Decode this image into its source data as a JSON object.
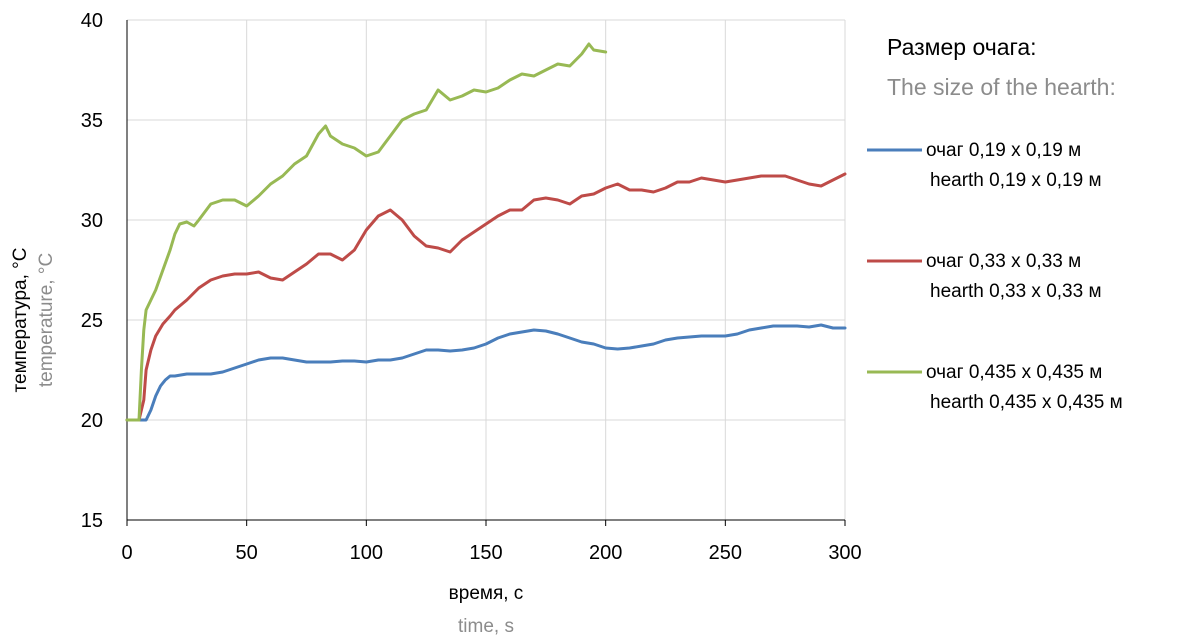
{
  "chart_data": {
    "type": "line",
    "xlabel": "время, с",
    "xlabel_en": "time, s",
    "ylabel": "температура, °C",
    "ylabel_en": "temperature, °C",
    "xlim": [
      0,
      300
    ],
    "ylim": [
      15,
      40
    ],
    "x_ticks": [
      0,
      50,
      100,
      150,
      200,
      250,
      300
    ],
    "y_ticks": [
      15,
      20,
      25,
      30,
      35,
      40
    ],
    "grid": true,
    "legend": {
      "placement": "right",
      "title": "Размер очага:",
      "subtitle": "The size of the hearth:"
    },
    "series": [
      {
        "name": "очаг 0,19 х 0,19 м",
        "name_en": "hearth 0,19 х 0,19 м",
        "color": "#4a7ebb",
        "x": [
          0,
          5,
          8,
          10,
          12,
          14,
          16,
          18,
          20,
          25,
          30,
          35,
          40,
          45,
          50,
          55,
          60,
          65,
          70,
          75,
          80,
          85,
          90,
          95,
          100,
          105,
          110,
          115,
          120,
          125,
          130,
          135,
          140,
          145,
          150,
          155,
          160,
          165,
          170,
          175,
          180,
          185,
          190,
          195,
          200,
          205,
          210,
          215,
          220,
          225,
          230,
          235,
          240,
          245,
          250,
          255,
          260,
          265,
          270,
          275,
          280,
          285,
          290,
          295,
          300
        ],
        "y": [
          20.0,
          20.0,
          20.0,
          20.5,
          21.2,
          21.7,
          22.0,
          22.2,
          22.2,
          22.3,
          22.3,
          22.3,
          22.4,
          22.6,
          22.8,
          23.0,
          23.1,
          23.1,
          23.0,
          22.9,
          22.9,
          22.9,
          22.95,
          22.95,
          22.9,
          23.0,
          23.0,
          23.1,
          23.3,
          23.5,
          23.5,
          23.45,
          23.5,
          23.6,
          23.8,
          24.1,
          24.3,
          24.4,
          24.5,
          24.45,
          24.3,
          24.1,
          23.9,
          23.8,
          23.6,
          23.55,
          23.6,
          23.7,
          23.8,
          24.0,
          24.1,
          24.15,
          24.2,
          24.2,
          24.2,
          24.3,
          24.5,
          24.6,
          24.7,
          24.7,
          24.7,
          24.65,
          24.75,
          24.6,
          24.6
        ]
      },
      {
        "name": "очаг 0,33 х 0,33 м",
        "name_en": "hearth 0,33 х 0,33 м",
        "color": "#be4b48",
        "x": [
          0,
          5,
          7,
          8,
          10,
          12,
          15,
          18,
          20,
          25,
          30,
          35,
          40,
          45,
          50,
          55,
          60,
          65,
          70,
          75,
          80,
          85,
          90,
          95,
          100,
          105,
          110,
          115,
          120,
          125,
          130,
          135,
          140,
          145,
          150,
          155,
          160,
          165,
          170,
          175,
          180,
          185,
          190,
          195,
          200,
          205,
          210,
          215,
          220,
          225,
          230,
          235,
          240,
          245,
          250,
          255,
          260,
          265,
          270,
          275,
          280,
          285,
          290,
          295,
          300
        ],
        "y": [
          20.0,
          20.0,
          21.0,
          22.5,
          23.5,
          24.2,
          24.8,
          25.2,
          25.5,
          26.0,
          26.6,
          27.0,
          27.2,
          27.3,
          27.3,
          27.4,
          27.1,
          27.0,
          27.4,
          27.8,
          28.3,
          28.3,
          28.0,
          28.5,
          29.5,
          30.2,
          30.5,
          30.0,
          29.2,
          28.7,
          28.6,
          28.4,
          29.0,
          29.4,
          29.8,
          30.2,
          30.5,
          30.5,
          31.0,
          31.1,
          31.0,
          30.8,
          31.2,
          31.3,
          31.6,
          31.8,
          31.5,
          31.5,
          31.4,
          31.6,
          31.9,
          31.9,
          32.1,
          32.0,
          31.9,
          32.0,
          32.1,
          32.2,
          32.2,
          32.2,
          32.0,
          31.8,
          31.7,
          32.0,
          32.3
        ]
      },
      {
        "name": "очаг 0,435 х 0,435 м",
        "name_en": "hearth 0,435 х 0,435 м",
        "color": "#98b954",
        "x": [
          0,
          5,
          6,
          7,
          8,
          10,
          12,
          15,
          18,
          20,
          22,
          25,
          28,
          30,
          35,
          40,
          45,
          50,
          55,
          60,
          65,
          70,
          75,
          80,
          83,
          85,
          90,
          95,
          100,
          105,
          110,
          115,
          120,
          125,
          130,
          135,
          140,
          145,
          150,
          155,
          160,
          165,
          170,
          175,
          180,
          185,
          190,
          193,
          195,
          200
        ],
        "y": [
          20.0,
          20.0,
          22.5,
          24.5,
          25.5,
          26.0,
          26.5,
          27.5,
          28.5,
          29.3,
          29.8,
          29.9,
          29.7,
          30.0,
          30.8,
          31.0,
          31.0,
          30.7,
          31.2,
          31.8,
          32.2,
          32.8,
          33.2,
          34.3,
          34.7,
          34.2,
          33.8,
          33.6,
          33.2,
          33.4,
          34.2,
          35.0,
          35.3,
          35.5,
          36.5,
          36.0,
          36.2,
          36.5,
          36.4,
          36.6,
          37.0,
          37.3,
          37.2,
          37.5,
          37.8,
          37.7,
          38.3,
          38.8,
          38.5,
          38.4
        ]
      }
    ]
  }
}
